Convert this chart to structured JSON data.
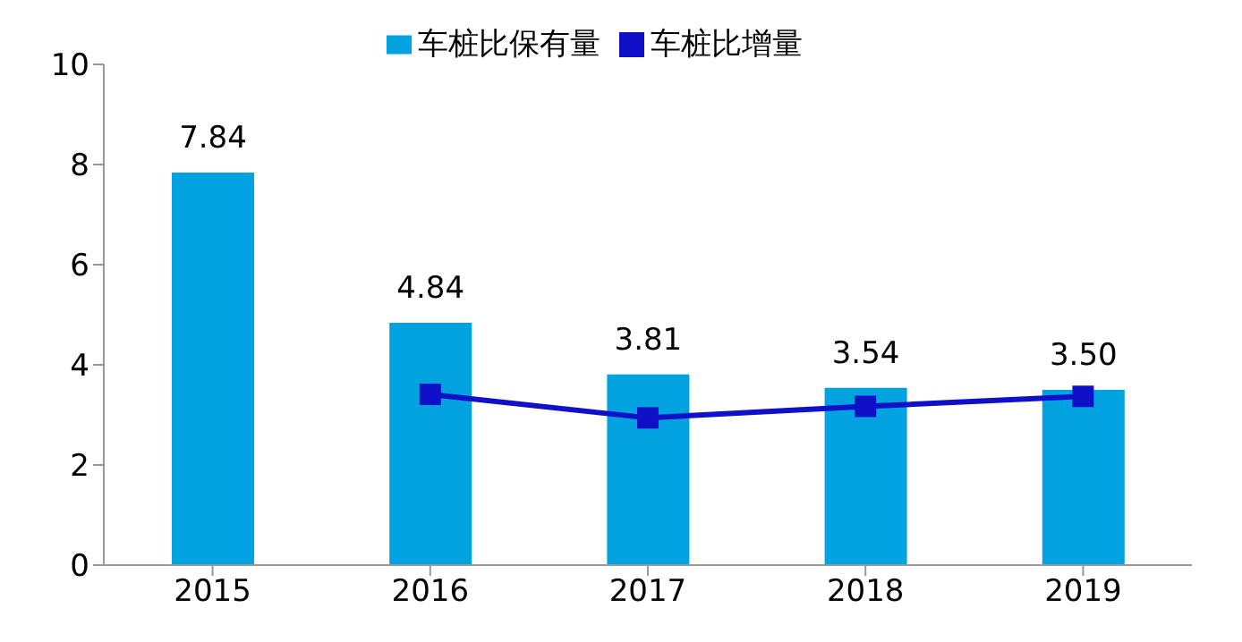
{
  "chart_data": {
    "type": "bar",
    "categories": [
      "2015",
      "2016",
      "2017",
      "2018",
      "2019"
    ],
    "series": [
      {
        "name": "车桩比保有量",
        "color": "#00a3e0",
        "values": [
          7.84,
          4.84,
          3.81,
          3.54,
          3.5
        ],
        "value_labels": [
          "7.84",
          "4.84",
          "3.81",
          "3.54",
          "3.50"
        ]
      },
      {
        "name": "车桩比增量",
        "type": "line",
        "color": "#1010c8",
        "values": [
          null,
          3.41,
          2.94,
          3.17,
          3.37
        ],
        "marker": "square"
      }
    ],
    "ylim": [
      0,
      10
    ],
    "yticks": [
      0,
      2,
      4,
      6,
      8,
      10
    ],
    "grid": false,
    "legend": "top"
  }
}
